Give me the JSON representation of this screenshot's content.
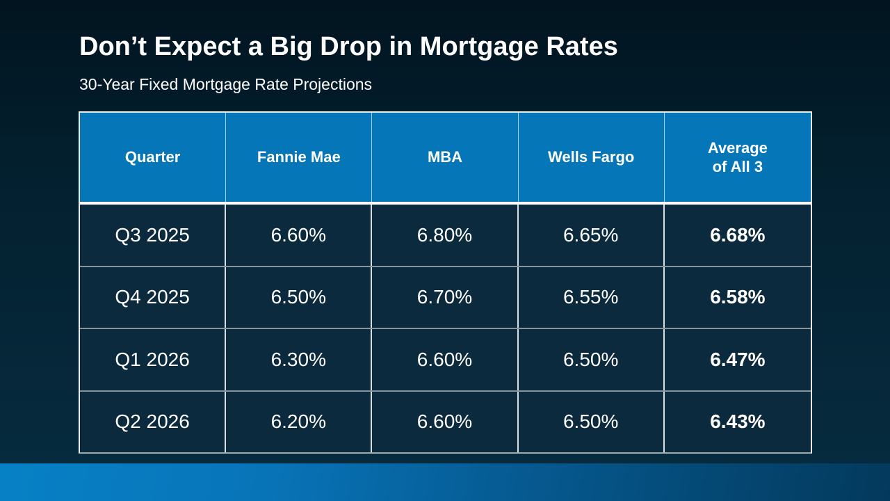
{
  "slide": {
    "title": "Don’t Expect a Big Drop in Mortgage Rates",
    "subtitle": "30-Year Fixed Mortgage Rate Projections"
  },
  "table": {
    "columns": [
      "Quarter",
      "Fannie Mae",
      "MBA",
      "Wells Fargo",
      "Average\nof All 3"
    ],
    "rows": [
      [
        "Q3 2025",
        "6.60%",
        "6.80%",
        "6.65%",
        "6.68%"
      ],
      [
        "Q4 2025",
        "6.50%",
        "6.70%",
        "6.55%",
        "6.58%"
      ],
      [
        "Q1 2026",
        "6.30%",
        "6.60%",
        "6.50%",
        "6.47%"
      ],
      [
        "Q2 2026",
        "6.20%",
        "6.60%",
        "6.50%",
        "6.43%"
      ]
    ]
  },
  "chart_data": {
    "type": "table",
    "title": "Don’t Expect a Big Drop in Mortgage Rates",
    "subtitle": "30-Year Fixed Mortgage Rate Projections",
    "columns": [
      "Quarter",
      "Fannie Mae",
      "MBA",
      "Wells Fargo",
      "Average of All 3"
    ],
    "rows": [
      [
        "Q3 2025",
        "6.60%",
        "6.80%",
        "6.65%",
        "6.68%"
      ],
      [
        "Q4 2025",
        "6.50%",
        "6.70%",
        "6.55%",
        "6.58%"
      ],
      [
        "Q1 2026",
        "6.30%",
        "6.60%",
        "6.50%",
        "6.47%"
      ],
      [
        "Q2 2026",
        "6.20%",
        "6.60%",
        "6.50%",
        "6.43%"
      ]
    ],
    "notes": "Last column (Average of All 3) rendered bold; header row blue; body rows dark navy"
  },
  "colors": {
    "header_blue": "#0577b9",
    "cell_navy": "#0c2a3d",
    "accent_bar_left": "#0781c6",
    "accent_bar_right": "#03395c",
    "background_top": "#021420",
    "background_bottom": "#072c40",
    "text": "#ffffff"
  }
}
